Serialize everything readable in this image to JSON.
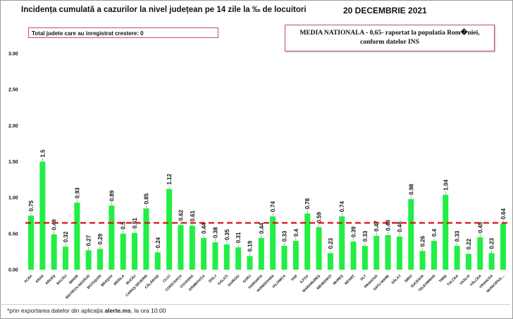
{
  "header": {
    "title": "Incidența cumulată a cazurilor la nivel județean pe 14 zile la ‰ de locuitori",
    "date": "20 DECEMBRIE 2021"
  },
  "info_box": {
    "text": "Total judete care au inregistrat crestere: 0"
  },
  "national_box": {
    "line1": "MEDIA NATIONALA - 0,65-  raportat la populatia Rom�niei,",
    "line2": "conform datelor INS"
  },
  "footnote": {
    "prefix": "*prin exportarea datelor din aplicația ",
    "bold": "alerte.ms",
    "suffix": ", la ora 10:00"
  },
  "colors": {
    "bar": "#22ee44",
    "reference_line": "#dd1111",
    "box_border": "#c9505a"
  },
  "chart_data": {
    "type": "bar",
    "title": "Incidența cumulată a cazurilor la nivel județean pe 14 zile la ‰ de locuitori",
    "xlabel": "",
    "ylabel": "",
    "ylim": [
      0,
      3
    ],
    "yticks": [
      "0.00",
      "0.50",
      "1.00",
      "1.50",
      "2.00",
      "2.50",
      "3.00"
    ],
    "grid": false,
    "reference_line": {
      "value": 0.65,
      "style": "dashed"
    },
    "categories": [
      "ALBA",
      "ARAD",
      "ARGEŞ",
      "BACĂU",
      "BIHOR",
      "BISTRIŢA-NĂSĂUD",
      "BOTOŞANI",
      "BRAŞOV",
      "BRĂILA",
      "BUZĂU",
      "CARAŞ-SEVERIN",
      "CĂLĂRAŞI",
      "CLUJ",
      "CONSTANŢA",
      "COVASNA",
      "DÂMBOVIŢA",
      "DOLJ",
      "GALAŢI",
      "GIURGIU",
      "GORJ",
      "HARGHITA",
      "HUNEDOARA",
      "IALOMIŢA",
      "IAŞI",
      "ILFOV",
      "MARAMUREŞ",
      "MEHEDINŢI",
      "MUREŞ",
      "NEAMŢ",
      "OLT",
      "PRAHOVA",
      "SATU MARE",
      "SĂLAJ",
      "SIBIU",
      "SUCEAVA",
      "TELEORMAN",
      "TIMIŞ",
      "TULCEA",
      "VASLUI",
      "VÂLCEA",
      "VRANCEA",
      "MUNICIPIUL..."
    ],
    "values": [
      0.75,
      1.5,
      0.49,
      0.32,
      0.93,
      0.27,
      0.29,
      0.89,
      0.5,
      0.51,
      0.85,
      0.24,
      1.12,
      0.62,
      0.61,
      0.44,
      0.38,
      0.35,
      0.31,
      0.19,
      0.44,
      0.74,
      0.33,
      0.4,
      0.78,
      0.59,
      0.23,
      0.74,
      0.39,
      0.33,
      0.47,
      0.48,
      0.46,
      0.98,
      0.26,
      0.4,
      1.04,
      0.33,
      0.22,
      0.45,
      0.23,
      0.64
    ],
    "value_labels": [
      "0.75",
      "1.5",
      "0.49",
      "0.32",
      "0.93",
      "0.27",
      "0.29",
      "0.89",
      "0.5",
      "0.51",
      "0.85",
      "0.24",
      "1.12",
      "0.62",
      "0.61",
      "0.44",
      "0.38",
      "0.35",
      "0.31",
      "0.19",
      "0.44",
      "0.74",
      "0.33",
      "0.4",
      "0.78",
      "0.59",
      "0.23",
      "0.74",
      "0.39",
      "0.33",
      "0.47",
      "0.48",
      "0.46",
      "0.98",
      "0.26",
      "0.4",
      "1.04",
      "0.33",
      "0.22",
      "0.45",
      "0.23",
      "0.64"
    ]
  }
}
